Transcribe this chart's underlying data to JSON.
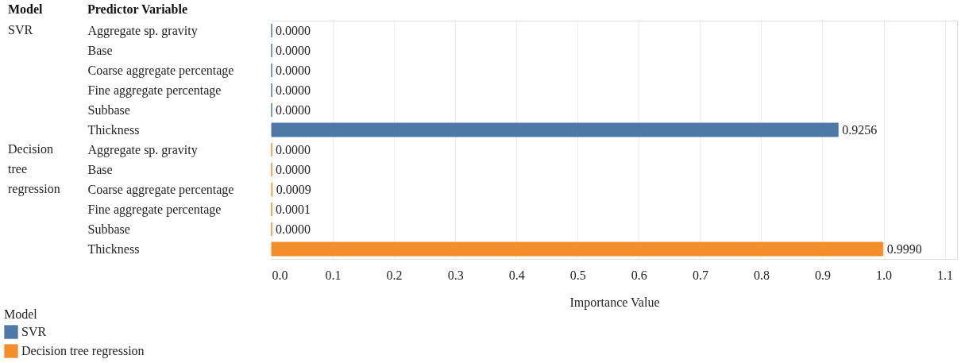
{
  "chart_data": {
    "type": "bar",
    "orientation": "horizontal",
    "xlabel": "Importance Value",
    "ylabel": "Predictor Variable",
    "legend_title": "Model",
    "legend": "bottom left",
    "grid": "x",
    "categories": [
      "Aggregate sp. gravity",
      "Base",
      "Coarse aggregate percentage",
      "Fine aggregate percentage",
      "Subbase",
      "Thickness",
      "Aggregate sp. gravity",
      "Base",
      "Coarse aggregate percentage",
      "Fine aggregate percentage",
      "Subbase",
      "Thickness"
    ],
    "xlim": [
      0,
      1.12
    ],
    "xticks": [
      {
        "value": 0,
        "label": "0.0"
      },
      0.1,
      0.2,
      0.3,
      0.4,
      0.5,
      0.6,
      0.7,
      0.8,
      0.9,
      {
        "value": 1,
        "label": "1.0"
      },
      1.1
    ],
    "series": [
      {
        "name": "SVR",
        "color": "#4e79a7",
        "values": [
          0,
          0,
          0,
          0,
          0,
          0.9256,
          null,
          null,
          null,
          null,
          null,
          null
        ],
        "value_labels": [
          "0.0000",
          "0.0000",
          "0.0000",
          "0.0000",
          "0.0000",
          "0.9256",
          null,
          null,
          null,
          null,
          null,
          null
        ]
      },
      {
        "name": "Decision tree regression",
        "color": "#f28e2b",
        "values": [
          null,
          null,
          null,
          null,
          null,
          null,
          0,
          0,
          0.0009,
          0.0001,
          0,
          0.999
        ],
        "value_labels": [
          null,
          null,
          null,
          null,
          null,
          null,
          "0.0000",
          "0.0000",
          "0.0009",
          "0.0001",
          "0.0000",
          "0.9990"
        ]
      }
    ]
  }
}
